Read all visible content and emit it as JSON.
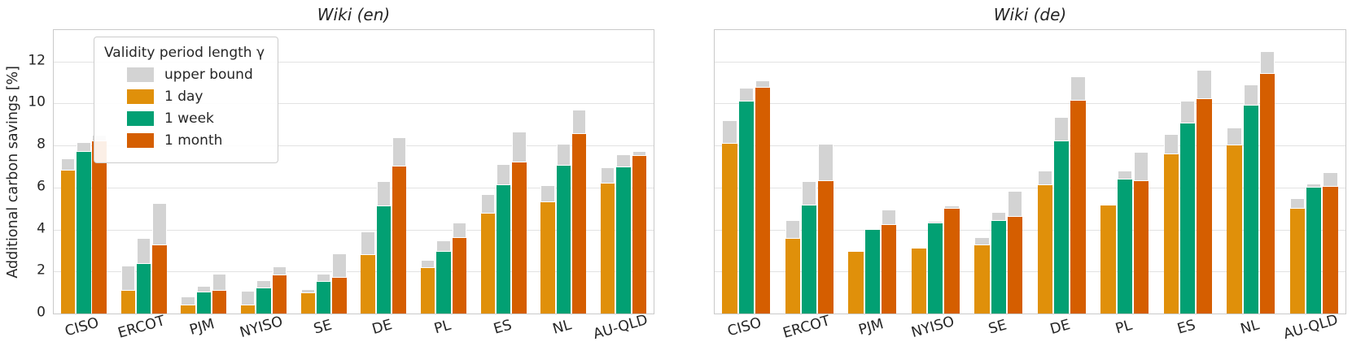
{
  "figure": {
    "y_axis": {
      "label": "Additional carbon savings [%]",
      "ticks": [
        0,
        2,
        4,
        6,
        8,
        10,
        12
      ],
      "ylim": [
        0,
        13.5
      ]
    },
    "legend": {
      "title": "Validity period length γ",
      "entries": [
        {
          "label": "upper bound",
          "color": "#d3d3d3"
        },
        {
          "label": "1 day",
          "color": "#e0900a"
        },
        {
          "label": "1 week",
          "color": "#02a073"
        },
        {
          "label": "1 month",
          "color": "#d55e00"
        }
      ]
    }
  },
  "chart_data": [
    {
      "type": "bar",
      "title": "Wiki (en)",
      "xlabel": "",
      "ylabel": "Additional carbon savings [%]",
      "ylim": [
        0,
        13.5
      ],
      "grid": true,
      "legend_position": "upper left",
      "categories": [
        "CISO",
        "ERCOT",
        "PJM",
        "NYISO",
        "SE",
        "DE",
        "PL",
        "ES",
        "NL",
        "AU-QLD"
      ],
      "upper_bound_color": "#d3d3d3",
      "series": [
        {
          "name": "1 day",
          "color": "#e0900a",
          "values": [
            6.8,
            1.1,
            0.4,
            0.4,
            0.95,
            2.8,
            2.15,
            4.75,
            5.3,
            6.2
          ],
          "upper_bound": [
            7.4,
            2.3,
            0.8,
            1.1,
            1.15,
            3.9,
            2.55,
            5.7,
            6.1,
            6.95
          ]
        },
        {
          "name": "1 week",
          "color": "#02a073",
          "values": [
            7.7,
            2.35,
            1.0,
            1.2,
            1.5,
            5.1,
            2.95,
            6.1,
            7.05,
            6.95
          ],
          "upper_bound": [
            8.15,
            3.6,
            1.3,
            1.6,
            1.9,
            6.3,
            3.5,
            7.1,
            8.1,
            7.6
          ]
        },
        {
          "name": "1 month",
          "color": "#d55e00",
          "values": [
            8.2,
            3.25,
            1.1,
            1.8,
            1.7,
            7.0,
            3.6,
            7.2,
            8.55,
            7.5
          ],
          "upper_bound": [
            8.5,
            5.25,
            1.9,
            2.25,
            2.85,
            8.4,
            4.35,
            8.65,
            9.7,
            7.75
          ]
        }
      ]
    },
    {
      "type": "bar",
      "title": "Wiki (de)",
      "xlabel": "",
      "ylabel": "Additional carbon savings [%]",
      "ylim": [
        0,
        13.5
      ],
      "grid": true,
      "legend_position": "none",
      "categories": [
        "CISO",
        "ERCOT",
        "PJM",
        "NYISO",
        "SE",
        "DE",
        "PL",
        "ES",
        "NL",
        "AU-QLD"
      ],
      "upper_bound_color": "#d3d3d3",
      "series": [
        {
          "name": "1 day",
          "color": "#e0900a",
          "values": [
            8.1,
            3.55,
            2.95,
            3.1,
            3.25,
            6.1,
            5.15,
            7.6,
            8.0,
            5.0
          ],
          "upper_bound": [
            9.2,
            4.45,
            2.95,
            3.1,
            3.65,
            6.8,
            5.15,
            8.55,
            8.85,
            5.5
          ]
        },
        {
          "name": "1 week",
          "color": "#02a073",
          "values": [
            10.1,
            5.15,
            4.0,
            4.3,
            4.4,
            8.2,
            6.4,
            9.05,
            9.9,
            6.0
          ],
          "upper_bound": [
            10.75,
            6.3,
            4.0,
            4.4,
            4.85,
            9.35,
            6.8,
            10.15,
            10.9,
            6.2
          ]
        },
        {
          "name": "1 month",
          "color": "#d55e00",
          "values": [
            10.75,
            6.3,
            4.2,
            5.0,
            4.6,
            10.15,
            6.3,
            10.2,
            11.4,
            6.05
          ],
          "upper_bound": [
            11.1,
            8.1,
            4.95,
            5.15,
            5.85,
            11.3,
            7.7,
            11.6,
            12.5,
            6.75
          ]
        }
      ]
    }
  ]
}
